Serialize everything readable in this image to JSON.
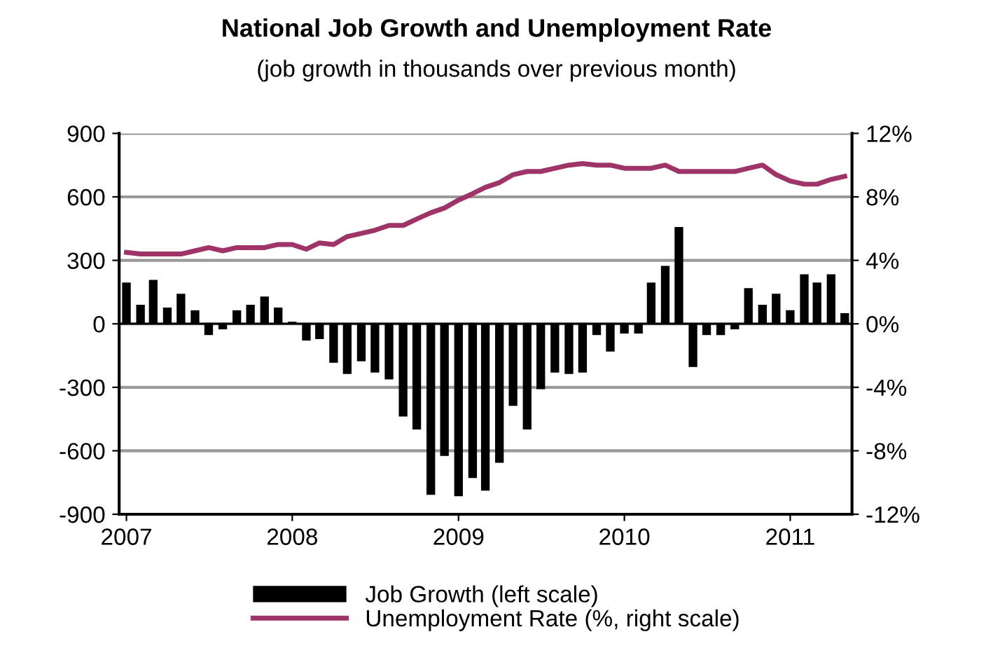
{
  "chart_data": {
    "type": "bar",
    "title": "National Job Growth and Unemployment Rate",
    "subtitle": "(job growth in thousands over previous month)",
    "x": [
      "2007-01",
      "2007-02",
      "2007-03",
      "2007-04",
      "2007-05",
      "2007-06",
      "2007-07",
      "2007-08",
      "2007-09",
      "2007-10",
      "2007-11",
      "2007-12",
      "2008-01",
      "2008-02",
      "2008-03",
      "2008-04",
      "2008-05",
      "2008-06",
      "2008-07",
      "2008-08",
      "2008-09",
      "2008-10",
      "2008-11",
      "2008-12",
      "2009-01",
      "2009-02",
      "2009-03",
      "2009-04",
      "2009-05",
      "2009-06",
      "2009-07",
      "2009-08",
      "2009-09",
      "2009-10",
      "2009-11",
      "2009-12",
      "2010-01",
      "2010-02",
      "2010-03",
      "2010-04",
      "2010-05",
      "2010-06",
      "2010-07",
      "2010-08",
      "2010-09",
      "2010-10",
      "2010-11",
      "2010-12",
      "2011-01",
      "2011-02",
      "2011-03",
      "2011-04",
      "2011-05"
    ],
    "series": [
      {
        "name": "Job Growth (left scale)",
        "color": "#000000",
        "values": [
          195,
          90,
          208,
          77,
          142,
          64,
          -53,
          -26,
          64,
          90,
          129,
          77,
          10,
          -79,
          -72,
          -184,
          -237,
          -177,
          -230,
          -263,
          -438,
          -499,
          -808,
          -624,
          -815,
          -729,
          -788,
          -657,
          -388,
          -499,
          -309,
          -230,
          -237,
          -230,
          -53,
          -131,
          -46,
          -46,
          195,
          274,
          458,
          -204,
          -53,
          -53,
          -26,
          169,
          90,
          142,
          64,
          234,
          195,
          234,
          50
        ]
      },
      {
        "name": "Unemployment Rate (%, right scale)",
        "type": "line",
        "axis": "y2",
        "color": "#9e3468",
        "values": [
          4.5,
          4.4,
          4.4,
          4.4,
          4.4,
          4.6,
          4.8,
          4.6,
          4.8,
          4.8,
          4.8,
          5.0,
          5.0,
          4.7,
          5.1,
          5.0,
          5.5,
          5.7,
          5.9,
          6.2,
          6.2,
          6.6,
          7.0,
          7.3,
          7.8,
          8.2,
          8.6,
          8.9,
          9.4,
          9.6,
          9.6,
          9.8,
          10.0,
          10.1,
          10.0,
          10.0,
          9.8,
          9.8,
          9.8,
          10.0,
          9.6,
          9.6,
          9.6,
          9.6,
          9.6,
          9.8,
          10.0,
          9.4,
          9.0,
          8.8,
          8.8,
          9.1,
          9.3
        ]
      }
    ],
    "xlim": [
      "2006-12-16",
      "2011-05-17"
    ],
    "xticks": [
      {
        "value": "2007-01",
        "label": "2007"
      },
      {
        "value": "2008-01",
        "label": "2008"
      },
      {
        "value": "2009-01",
        "label": "2009"
      },
      {
        "value": "2010-01",
        "label": "2010"
      },
      {
        "value": "2011-01",
        "label": "2011"
      }
    ],
    "ylim": [
      -900,
      900
    ],
    "yticks": [
      -900,
      -600,
      -300,
      0,
      300,
      600,
      900
    ],
    "y2lim": [
      -12,
      12
    ],
    "y2ticks": [
      {
        "value": -12,
        "label": "-12%"
      },
      {
        "value": -8,
        "label": "-8%"
      },
      {
        "value": -4,
        "label": "-4%"
      },
      {
        "value": 0,
        "label": "0%"
      },
      {
        "value": 4,
        "label": "4%"
      },
      {
        "value": 8,
        "label": "8%"
      },
      {
        "value": 12,
        "label": "12%"
      }
    ],
    "grid": "y",
    "legend": "bottom"
  }
}
